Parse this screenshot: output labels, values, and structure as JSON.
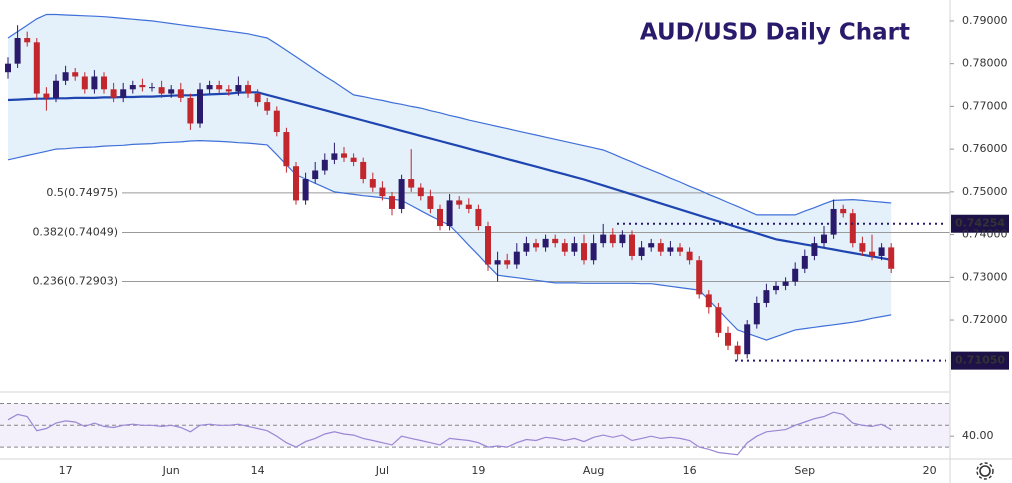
{
  "chart_data": {
    "type": "candlestick",
    "title": "AUD/USD Daily Chart",
    "categories": [
      null,
      null,
      null,
      null,
      null,
      null,
      "17",
      null,
      null,
      null,
      null,
      null,
      null,
      null,
      null,
      null,
      null,
      "Jun",
      null,
      null,
      null,
      null,
      null,
      null,
      null,
      null,
      "14",
      null,
      null,
      null,
      null,
      null,
      null,
      null,
      null,
      null,
      null,
      null,
      null,
      "Jul",
      null,
      null,
      null,
      null,
      null,
      null,
      null,
      null,
      null,
      "19",
      null,
      null,
      null,
      null,
      null,
      null,
      null,
      null,
      null,
      null,
      null,
      "Aug",
      null,
      null,
      null,
      null,
      null,
      null,
      null,
      null,
      null,
      "16",
      null,
      null,
      null,
      null,
      null,
      null,
      null,
      null,
      null,
      null,
      null,
      "Sep",
      null,
      null,
      null,
      null,
      null,
      null,
      null,
      null,
      null,
      null,
      null,
      null,
      "20"
    ],
    "open": [
      0.778,
      0.78,
      0.786,
      0.785,
      0.773,
      0.772,
      0.776,
      0.778,
      0.777,
      0.774,
      0.777,
      0.774,
      0.772,
      0.774,
      0.775,
      0.7745,
      0.7745,
      0.773,
      0.774,
      0.772,
      0.766,
      0.774,
      0.775,
      0.774,
      0.7735,
      0.775,
      0.773,
      0.771,
      0.769,
      0.764,
      0.756,
      0.748,
      0.753,
      0.755,
      0.7575,
      0.759,
      0.758,
      0.757,
      0.753,
      0.751,
      0.749,
      0.746,
      0.753,
      0.751,
      0.749,
      0.746,
      0.742,
      0.748,
      0.747,
      0.746,
      0.742,
      0.733,
      0.734,
      0.733,
      0.736,
      0.738,
      0.737,
      0.739,
      0.738,
      0.736,
      0.738,
      0.734,
      0.738,
      0.74,
      0.738,
      0.74,
      0.735,
      0.737,
      0.738,
      0.736,
      0.737,
      0.736,
      0.734,
      0.726,
      0.723,
      0.717,
      0.714,
      0.712,
      0.719,
      0.724,
      0.727,
      0.728,
      0.729,
      0.732,
      0.735,
      0.738,
      0.74,
      0.746,
      0.745,
      0.738,
      0.736,
      0.735,
      0.737,
      null,
      null,
      null,
      null
    ],
    "high": [
      0.7815,
      0.789,
      0.7875,
      0.786,
      0.7745,
      0.7775,
      0.7795,
      0.779,
      0.778,
      0.7785,
      0.778,
      0.7755,
      0.7755,
      0.776,
      0.7765,
      0.7755,
      0.776,
      0.775,
      0.7755,
      0.773,
      0.7755,
      0.776,
      0.776,
      0.775,
      0.777,
      0.776,
      0.774,
      0.772,
      0.77,
      0.765,
      0.757,
      0.7545,
      0.757,
      0.759,
      0.7615,
      0.7605,
      0.759,
      0.758,
      0.7545,
      0.7525,
      0.75,
      0.754,
      0.76,
      0.752,
      0.7505,
      0.747,
      0.7495,
      0.749,
      0.7485,
      0.747,
      0.743,
      0.736,
      0.7355,
      0.738,
      0.7395,
      0.739,
      0.74,
      0.74,
      0.739,
      0.7395,
      0.74,
      0.74,
      0.7425,
      0.7415,
      0.741,
      0.741,
      0.7385,
      0.739,
      0.739,
      0.7385,
      0.738,
      0.737,
      0.735,
      0.727,
      0.724,
      0.7185,
      0.715,
      0.72,
      0.7255,
      0.7285,
      0.729,
      0.73,
      0.7335,
      0.7365,
      0.7395,
      0.742,
      0.7482,
      0.747,
      0.746,
      0.7395,
      0.74,
      0.738,
      0.738,
      null,
      null,
      null,
      null
    ],
    "low": [
      0.7765,
      0.779,
      0.784,
      0.7715,
      0.769,
      0.771,
      0.775,
      0.776,
      0.773,
      0.773,
      0.773,
      0.771,
      0.771,
      0.773,
      0.7735,
      0.7735,
      0.772,
      0.772,
      0.771,
      0.7645,
      0.765,
      0.773,
      0.773,
      0.7725,
      0.7725,
      0.772,
      0.77,
      0.768,
      0.763,
      0.7545,
      0.747,
      0.747,
      0.752,
      0.754,
      0.7565,
      0.757,
      0.756,
      0.752,
      0.75,
      0.748,
      0.7445,
      0.745,
      0.75,
      0.748,
      0.745,
      0.741,
      0.741,
      0.746,
      0.745,
      0.741,
      0.7315,
      0.729,
      0.732,
      0.732,
      0.735,
      0.736,
      0.736,
      0.737,
      0.735,
      0.735,
      0.733,
      0.733,
      0.737,
      0.737,
      0.737,
      0.734,
      0.734,
      0.736,
      0.735,
      0.735,
      0.735,
      0.733,
      0.725,
      0.7215,
      0.716,
      0.713,
      0.7105,
      0.711,
      0.718,
      0.723,
      0.726,
      0.727,
      0.728,
      0.731,
      0.734,
      0.737,
      0.739,
      0.744,
      0.737,
      0.735,
      0.734,
      0.734,
      0.731,
      null,
      null,
      null,
      null
    ],
    "close": [
      0.78,
      0.786,
      0.785,
      0.773,
      0.772,
      0.776,
      0.778,
      0.777,
      0.774,
      0.777,
      0.774,
      0.772,
      0.774,
      0.775,
      0.7745,
      0.7745,
      0.773,
      0.774,
      0.772,
      0.766,
      0.774,
      0.775,
      0.774,
      0.7735,
      0.775,
      0.773,
      0.771,
      0.769,
      0.764,
      0.756,
      0.748,
      0.753,
      0.755,
      0.7575,
      0.759,
      0.758,
      0.757,
      0.753,
      0.751,
      0.749,
      0.746,
      0.753,
      0.751,
      0.749,
      0.746,
      0.742,
      0.748,
      0.747,
      0.746,
      0.742,
      0.733,
      0.734,
      0.733,
      0.736,
      0.738,
      0.737,
      0.739,
      0.738,
      0.736,
      0.738,
      0.734,
      0.738,
      0.74,
      0.738,
      0.74,
      0.735,
      0.737,
      0.738,
      0.736,
      0.737,
      0.736,
      0.734,
      0.726,
      0.723,
      0.717,
      0.714,
      0.712,
      0.719,
      0.724,
      0.727,
      0.728,
      0.729,
      0.732,
      0.735,
      0.738,
      0.74,
      0.746,
      0.745,
      0.738,
      0.736,
      0.735,
      0.737,
      0.732,
      null,
      null,
      null,
      null
    ],
    "up_color": "#2a1a6b",
    "down_color": "#c1272d",
    "bands": {
      "color": "#3f6fd8",
      "middle_color": "#1f45b0",
      "fill": "#e4f1fb",
      "upper": [
        0.786,
        0.7875,
        0.789,
        0.7905,
        0.7915,
        0.7915,
        0.7914,
        0.7913,
        0.7912,
        0.7911,
        0.791,
        0.7908,
        0.7906,
        0.7904,
        0.7902,
        0.79,
        0.7897,
        0.7894,
        0.7891,
        0.7888,
        0.7885,
        0.7882,
        0.7879,
        0.7876,
        0.7873,
        0.787,
        0.7865,
        0.786,
        0.7846,
        0.7831,
        0.7816,
        0.7801,
        0.7786,
        0.7771,
        0.7757,
        0.7742,
        0.7727,
        0.7723,
        0.7718,
        0.7714,
        0.7709,
        0.7705,
        0.77,
        0.7696,
        0.769,
        0.7685,
        0.7679,
        0.7674,
        0.7668,
        0.7663,
        0.7658,
        0.7653,
        0.7648,
        0.7643,
        0.7638,
        0.7633,
        0.7628,
        0.7623,
        0.7618,
        0.7613,
        0.7608,
        0.7603,
        0.7598,
        0.7589,
        0.7579,
        0.757,
        0.756,
        0.7551,
        0.7542,
        0.7532,
        0.7523,
        0.7513,
        0.7504,
        0.7494,
        0.7485,
        0.7475,
        0.7466,
        0.7456,
        0.7446,
        0.7446,
        0.7446,
        0.7446,
        0.7446,
        0.7455,
        0.7463,
        0.7472,
        0.748,
        0.7481,
        0.7482,
        0.748,
        0.7478,
        0.7476,
        0.7474,
        null,
        null,
        null,
        null
      ],
      "middle": [
        0.7715,
        0.7716,
        0.7717,
        0.7718,
        0.7718,
        0.7719,
        0.7719,
        0.772,
        0.772,
        0.772,
        0.7721,
        0.7721,
        0.7722,
        0.7722,
        0.7723,
        0.7723,
        0.7724,
        0.7725,
        0.7726,
        0.7726,
        0.7727,
        0.7728,
        0.7729,
        0.773,
        0.7732,
        0.7733,
        0.7733,
        0.7727,
        0.7721,
        0.7715,
        0.7709,
        0.7703,
        0.7697,
        0.7691,
        0.7685,
        0.7679,
        0.7673,
        0.7667,
        0.7661,
        0.7655,
        0.7649,
        0.7643,
        0.7637,
        0.7631,
        0.7625,
        0.7619,
        0.7613,
        0.7607,
        0.7601,
        0.7595,
        0.7589,
        0.7583,
        0.7577,
        0.7571,
        0.7565,
        0.7559,
        0.7553,
        0.7547,
        0.7541,
        0.7535,
        0.7529,
        0.7522,
        0.7515,
        0.7508,
        0.7501,
        0.7494,
        0.7487,
        0.748,
        0.7473,
        0.7466,
        0.7459,
        0.7452,
        0.7445,
        0.7438,
        0.7431,
        0.7424,
        0.7417,
        0.741,
        0.7403,
        0.7396,
        0.7389,
        0.7385,
        0.7381,
        0.7377,
        0.7373,
        0.7369,
        0.7365,
        0.7361,
        0.7357,
        0.7353,
        0.7349,
        0.7345,
        0.7341,
        null,
        null,
        null,
        null
      ],
      "lower": [
        0.7575,
        0.758,
        0.7585,
        0.759,
        0.7595,
        0.76,
        0.7601,
        0.7603,
        0.7604,
        0.7605,
        0.7607,
        0.7608,
        0.7609,
        0.7611,
        0.7612,
        0.7613,
        0.7615,
        0.7616,
        0.7617,
        0.7619,
        0.762,
        0.7619,
        0.7618,
        0.7617,
        0.7615,
        0.7614,
        0.7612,
        0.761,
        0.7587,
        0.7563,
        0.754,
        0.753,
        0.752,
        0.751,
        0.75,
        0.7497,
        0.7494,
        0.7491,
        0.7489,
        0.7486,
        0.7483,
        0.748,
        0.7468,
        0.7456,
        0.7444,
        0.7433,
        0.7422,
        0.7399,
        0.7375,
        0.7352,
        0.7328,
        0.7305,
        0.7302,
        0.7299,
        0.7296,
        0.7293,
        0.729,
        0.7287,
        0.7287,
        0.7287,
        0.7286,
        0.7286,
        0.7286,
        0.7286,
        0.7286,
        0.7286,
        0.7285,
        0.7285,
        0.7282,
        0.7279,
        0.7276,
        0.7273,
        0.727,
        0.7247,
        0.7224,
        0.72,
        0.7177,
        0.7169,
        0.7161,
        0.7153,
        0.7161,
        0.7169,
        0.7177,
        0.718,
        0.7183,
        0.7186,
        0.7189,
        0.7192,
        0.7195,
        0.7199,
        0.7204,
        0.7208,
        0.7212,
        null,
        null,
        null,
        null
      ]
    },
    "ylim": [
      0.7048,
      0.7949
    ],
    "yticks": [
      {
        "value": 0.79,
        "label": "0.79000"
      },
      {
        "value": 0.78,
        "label": "0.78000"
      },
      {
        "value": 0.77,
        "label": "0.77000"
      },
      {
        "value": 0.76,
        "label": "0.76000"
      },
      {
        "value": 0.75,
        "label": "0.75000"
      },
      {
        "value": 0.74,
        "label": "0.74000"
      },
      {
        "value": 0.73,
        "label": "0.73000"
      },
      {
        "value": 0.72,
        "label": "0.72000"
      }
    ],
    "fib_levels": [
      {
        "value": 0.74975,
        "label": "0.5(0.74975)"
      },
      {
        "value": 0.74049,
        "label": "0.382(0.74049)"
      },
      {
        "value": 0.72903,
        "label": "0.236(0.72903)"
      }
    ],
    "key_levels": [
      {
        "value": 0.74254,
        "label": "0.74254"
      },
      {
        "value": 0.7105,
        "label": "0.71050"
      }
    ],
    "rsi": {
      "color": "#9b86d4",
      "ylim": [
        20,
        75
      ],
      "levels": [
        70,
        50,
        30
      ],
      "yticks": [
        {
          "value": 40,
          "label": "40.00"
        }
      ],
      "values": [
        55,
        60,
        58,
        45,
        47,
        52,
        54,
        53,
        49,
        52,
        49,
        48,
        50,
        51,
        50,
        50,
        49,
        50,
        48,
        44,
        50,
        51,
        50,
        50,
        51,
        49,
        47,
        45,
        40,
        34,
        30,
        35,
        38,
        42,
        44,
        42,
        41,
        38,
        36,
        34,
        32,
        40,
        38,
        36,
        34,
        32,
        38,
        37,
        36,
        34,
        30,
        31,
        30,
        34,
        37,
        36,
        39,
        38,
        36,
        38,
        35,
        39,
        41,
        39,
        41,
        36,
        38,
        40,
        38,
        39,
        38,
        36,
        30,
        28,
        25,
        24,
        23,
        34,
        40,
        44,
        45,
        46,
        50,
        53,
        56,
        58,
        62,
        60,
        52,
        50,
        49,
        51,
        46,
        null,
        null,
        null,
        null
      ]
    }
  }
}
